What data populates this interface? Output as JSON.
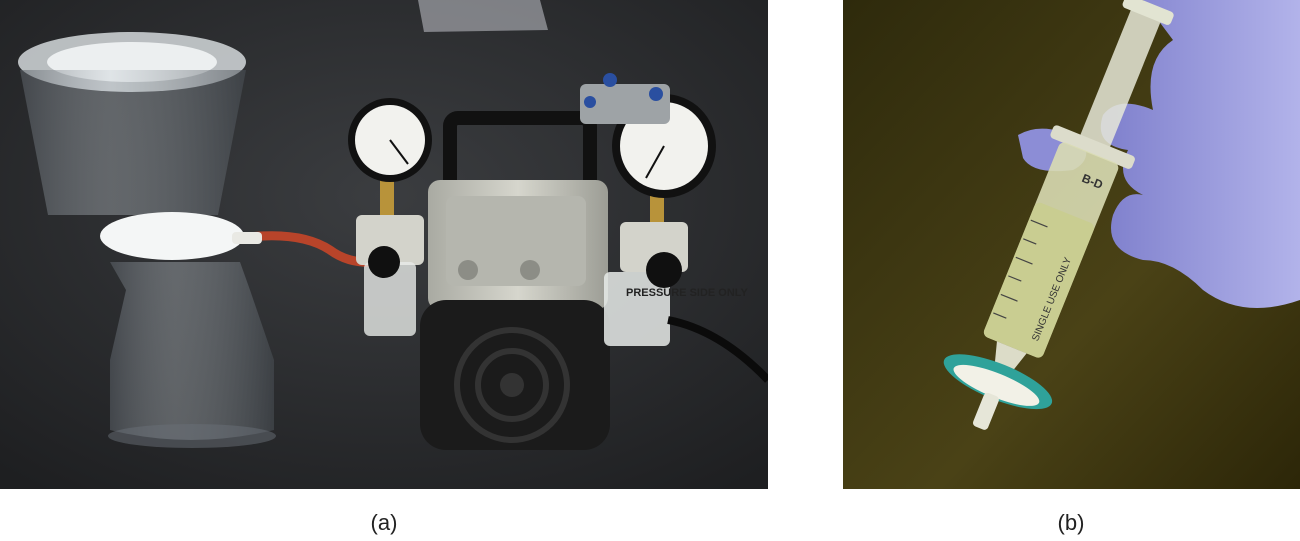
{
  "captions": {
    "a": "(a)",
    "b": "(b)"
  },
  "labels": {
    "pump_side": "PRESSURE SIDE ONLY",
    "syringe_side": "SINGLE USE ONLY",
    "syringe_brand": "B-D"
  },
  "colors": {
    "bench": "#2b2d2f",
    "pump_body": "#c9c9c0",
    "fan_cover": "#1b1b1b",
    "tubing": "#b8442a",
    "glove": "#8f8fd6",
    "filter_ring": "#2fa29a",
    "panel_b_bg": "#3a3410"
  }
}
